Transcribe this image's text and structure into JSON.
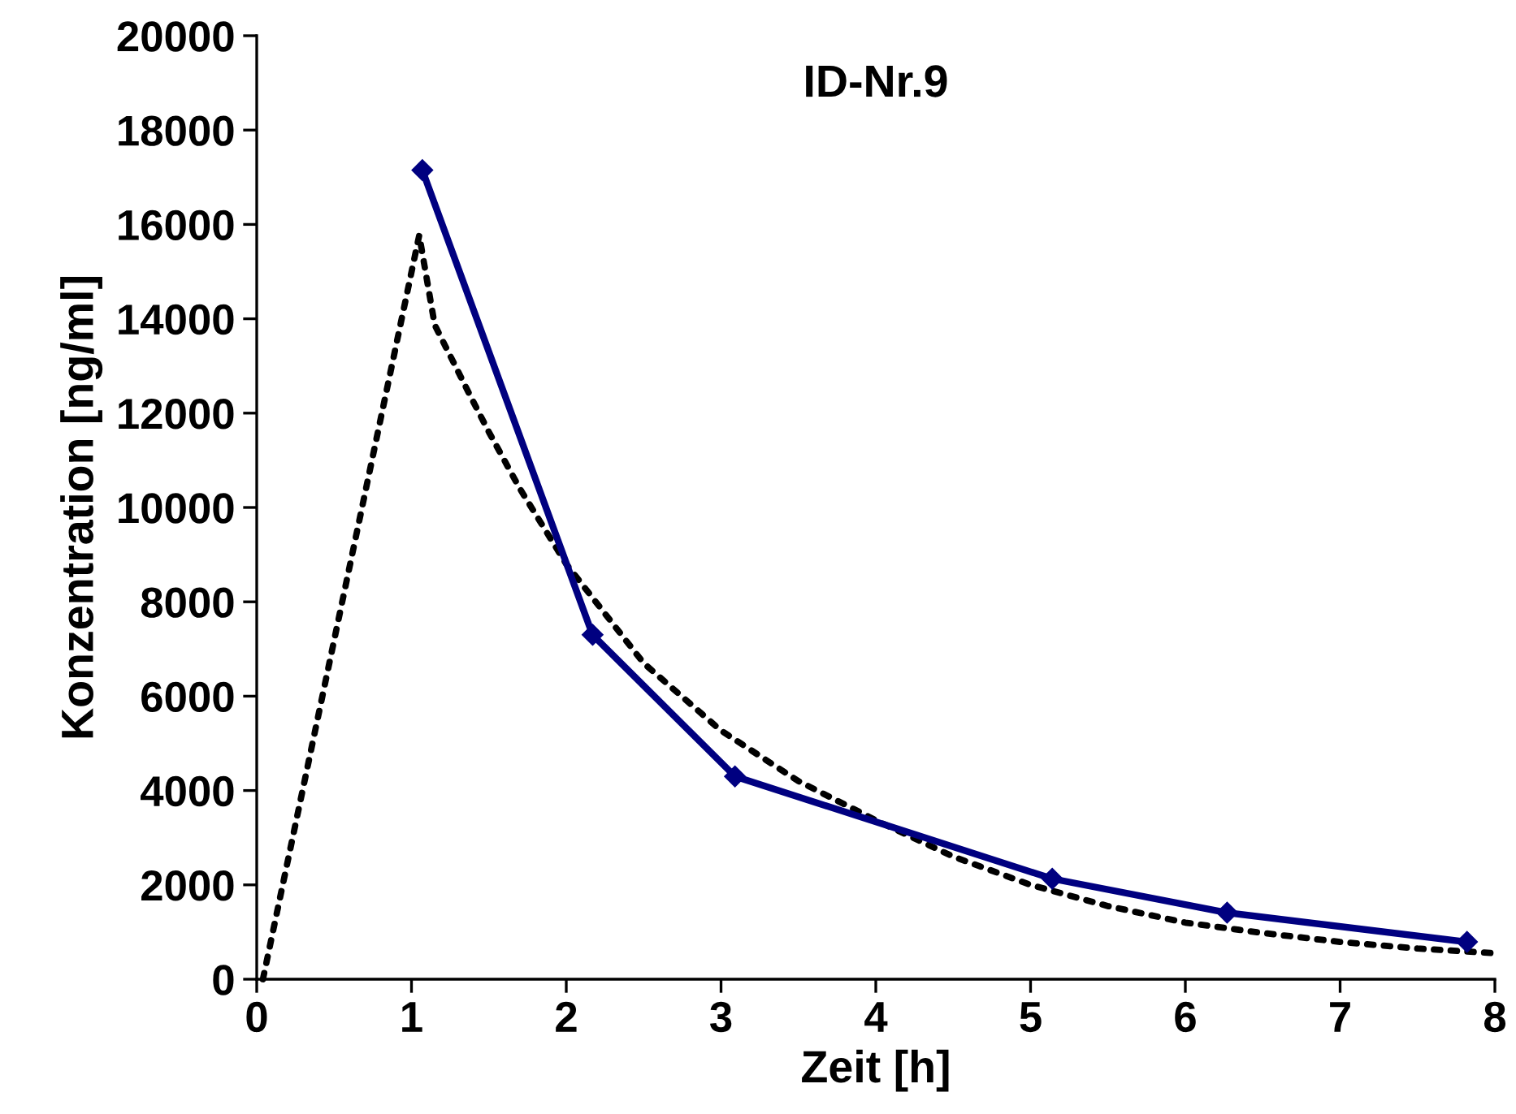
{
  "chart_data": {
    "type": "line",
    "title": "ID-Nr.9",
    "xlabel": "Zeit [h]",
    "ylabel": "Konzentration [ng/ml]",
    "xlim": [
      0,
      8
    ],
    "xticks": [
      0,
      1,
      2,
      3,
      4,
      5,
      6,
      7,
      8
    ],
    "ylim": [
      0,
      20000
    ],
    "yticks": [
      0,
      2000,
      4000,
      6000,
      8000,
      10000,
      12000,
      14000,
      16000,
      18000,
      20000
    ],
    "grid": false,
    "legend": false,
    "series": [
      {
        "color": "#000000",
        "line_style": "dotted",
        "marker": "none",
        "x": [
          0.04,
          1.05,
          1.15,
          1.39,
          1.5,
          1.7,
          2.0,
          2.5,
          3.0,
          3.5,
          4.0,
          4.5,
          5.0,
          5.5,
          6.0,
          6.5,
          7.0,
          7.5,
          8.0
        ],
        "values": [
          0,
          15770,
          13870,
          12300,
          11600,
          10400,
          8800,
          6700,
          5270,
          4200,
          3370,
          2600,
          2000,
          1550,
          1200,
          980,
          790,
          650,
          550
        ]
      },
      {
        "color": "#000080",
        "line_style": "solid",
        "marker": "diamond",
        "x": [
          1.07,
          2.17,
          3.09,
          5.14,
          6.27,
          7.82
        ],
        "values": [
          17150,
          7300,
          4300,
          2130,
          1410,
          790
        ]
      }
    ]
  }
}
